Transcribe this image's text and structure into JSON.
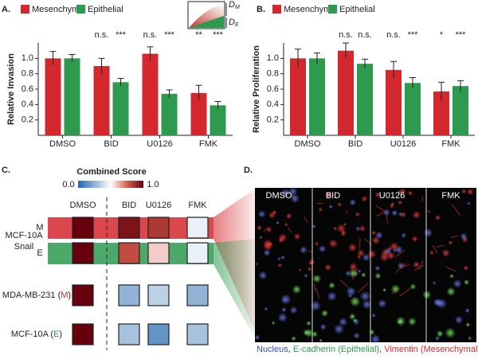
{
  "panels": [
    "A.",
    "B.",
    "C.",
    "D."
  ],
  "inset": [
    {
      "letter": "D",
      "sub": "M"
    },
    {
      "letter": "D",
      "sub": "E"
    }
  ],
  "chart_data": [
    {
      "type": "bar",
      "ylabel": "Relative Invasion",
      "categories": [
        "DMSO",
        "BID",
        "U0126",
        "FMK"
      ],
      "series": [
        {
          "name": "Mesenchymal",
          "color": "#d3282e",
          "values": [
            1.0,
            0.9,
            1.06,
            0.55
          ],
          "errors": [
            0.09,
            0.1,
            0.09,
            0.1
          ],
          "sig": [
            "",
            "n.s.",
            "n.s.",
            "**"
          ]
        },
        {
          "name": "Epithelial",
          "color": "#2e9a4f",
          "values": [
            1.0,
            0.69,
            0.54,
            0.39
          ],
          "errors": [
            0.05,
            0.05,
            0.05,
            0.05
          ],
          "sig": [
            "",
            "***",
            "***",
            "***"
          ]
        }
      ],
      "ylim": [
        0,
        1.2
      ],
      "yticks": [
        0.2,
        0.4,
        0.6,
        0.8,
        {
          "value": 1,
          "label": "1.0"
        }
      ]
    },
    {
      "type": "bar",
      "ylabel": "Relative Proliferation",
      "categories": [
        "DMSO",
        "BID",
        "U0126",
        "FMK"
      ],
      "series": [
        {
          "name": "Mesenchymal",
          "color": "#d3282e",
          "values": [
            1.0,
            1.1,
            0.85,
            0.57
          ],
          "errors": [
            0.12,
            0.1,
            0.11,
            0.12
          ],
          "sig": [
            "",
            "n.s.",
            "n.s.",
            "*"
          ]
        },
        {
          "name": "Epithelial",
          "color": "#2e9a4f",
          "values": [
            1.0,
            0.93,
            0.68,
            0.64
          ],
          "errors": [
            0.07,
            0.06,
            0.07,
            0.07
          ],
          "sig": [
            "",
            "n.s.",
            "***",
            "***"
          ]
        }
      ],
      "ylim": [
        0,
        1.2
      ],
      "yticks": [
        0.2,
        0.4,
        0.6,
        0.8,
        {
          "value": 1,
          "label": "1.0"
        }
      ]
    },
    {
      "type": "heatmap",
      "title": "Combined Score",
      "x": [
        "DMSO",
        "BID",
        "U0126",
        "FMK"
      ],
      "group_label": [
        "MCF-10A",
        "Snail"
      ],
      "rows": [
        {
          "tag": "M"
        },
        {
          "tag": "E"
        },
        {
          "text": "MDA-MB-231 (",
          "tag": "M",
          "end": ")"
        },
        {
          "text": "MCF-10A (",
          "tag": "E",
          "end": ")"
        }
      ],
      "tag_colors": {
        "M": "#d3282e",
        "E": "#2e9a4f"
      },
      "values": [
        [
          1.0,
          0.95,
          0.85,
          0.45
        ],
        [
          1.0,
          0.8,
          0.58,
          0.45
        ],
        [
          1.0,
          0.25,
          0.35,
          0.25
        ],
        [
          1.0,
          0.3,
          0.15,
          0.3
        ]
      ],
      "zlim": [
        0,
        1
      ],
      "zticks": [
        {
          "value": 0,
          "label": "0.0"
        },
        {
          "value": 1,
          "label": "1.0"
        }
      ]
    }
  ],
  "microscopy": {
    "columns": [
      "DMSO",
      "BID",
      "U0126",
      "FMK"
    ],
    "caption": [
      {
        "text": "Nucleus",
        "color": "#3548c0"
      },
      {
        "text": ", ",
        "color": "#222"
      },
      {
        "text": "E-cadherin (Epithelial)",
        "color": "#2e9a4f"
      },
      {
        "text": ", ",
        "color": "#222"
      },
      {
        "text": "Vimentin (Mesenchymal)",
        "color": "#d3282e"
      }
    ]
  }
}
